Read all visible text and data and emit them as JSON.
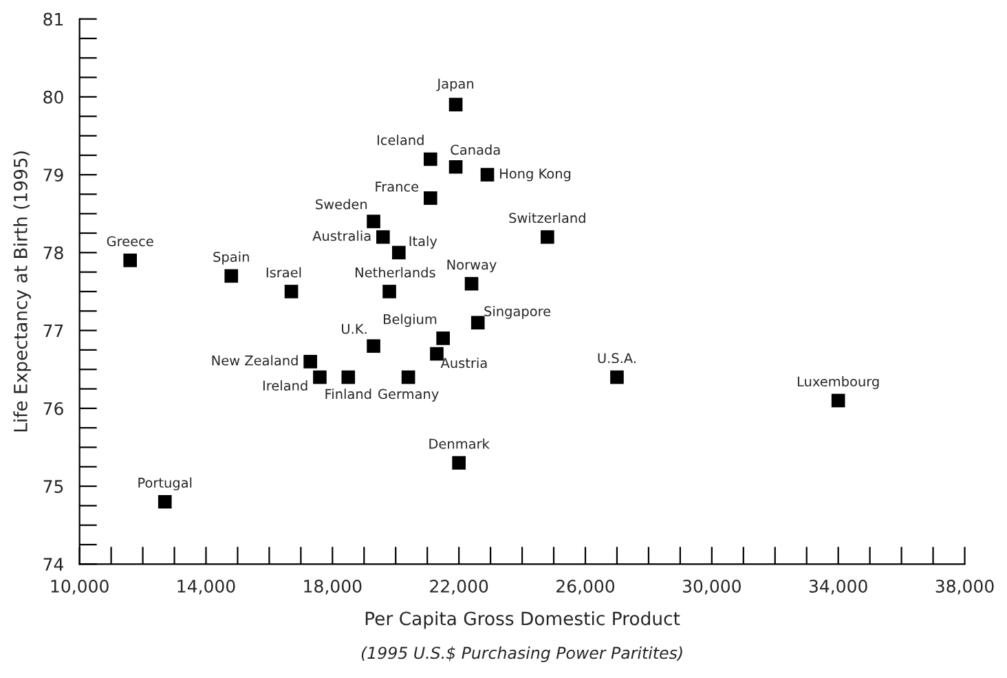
{
  "chart_data": {
    "type": "scatter",
    "xlabel": "Per Capita Gross Domestic Product",
    "ylabel": "Life Expectancy at Birth (1995)",
    "marker": "square",
    "grid": false,
    "x": [
      11600,
      12700,
      14800,
      16700,
      17300,
      17600,
      18500,
      19300,
      19300,
      19600,
      20100,
      19800,
      20400,
      21100,
      21100,
      21900,
      21900,
      22900,
      21500,
      21300,
      22400,
      22600,
      22000,
      24800,
      27000,
      34000
    ],
    "series": [
      {
        "color": "#000000",
        "values": [
          77.9,
          74.8,
          77.7,
          77.5,
          76.6,
          76.4,
          76.4,
          76.8,
          78.4,
          78.2,
          78.0,
          77.5,
          76.4,
          78.7,
          79.2,
          79.9,
          79.1,
          79.0,
          76.9,
          76.7,
          77.6,
          77.1,
          75.3,
          78.2,
          76.4,
          76.1
        ]
      }
    ],
    "annotations": [
      {
        "text": "Greece",
        "x": 11600,
        "y": 77.9
      },
      {
        "text": "Portugal",
        "x": 12700,
        "y": 74.8
      },
      {
        "text": "Spain",
        "x": 14800,
        "y": 77.7
      },
      {
        "text": "Israel",
        "x": 16700,
        "y": 77.5
      },
      {
        "text": "New Zealand",
        "x": 17300,
        "y": 76.6
      },
      {
        "text": "Ireland",
        "x": 17600,
        "y": 76.4
      },
      {
        "text": "Finland",
        "x": 18500,
        "y": 76.4
      },
      {
        "text": "U.K.",
        "x": 19300,
        "y": 76.8
      },
      {
        "text": "Sweden",
        "x": 19300,
        "y": 78.4
      },
      {
        "text": "Australia",
        "x": 19600,
        "y": 78.2
      },
      {
        "text": "Italy",
        "x": 20100,
        "y": 78.0
      },
      {
        "text": "Netherlands",
        "x": 19800,
        "y": 77.5
      },
      {
        "text": "Germany",
        "x": 20400,
        "y": 76.4
      },
      {
        "text": "France",
        "x": 21100,
        "y": 78.7
      },
      {
        "text": "Iceland",
        "x": 21100,
        "y": 79.2
      },
      {
        "text": "Japan",
        "x": 21900,
        "y": 79.9
      },
      {
        "text": "Canada",
        "x": 21900,
        "y": 79.1
      },
      {
        "text": "Hong Kong",
        "x": 22900,
        "y": 79.0
      },
      {
        "text": "Belgium",
        "x": 21500,
        "y": 76.9
      },
      {
        "text": "Austria",
        "x": 21300,
        "y": 76.7
      },
      {
        "text": "Norway",
        "x": 22400,
        "y": 77.6
      },
      {
        "text": "Singapore",
        "x": 22600,
        "y": 77.1
      },
      {
        "text": "Denmark",
        "x": 22000,
        "y": 75.3
      },
      {
        "text": "Switzerland",
        "x": 24800,
        "y": 78.2
      },
      {
        "text": "U.S.A.",
        "x": 27000,
        "y": 76.4
      },
      {
        "text": "Luxembourg",
        "x": 34000,
        "y": 76.1
      },
      "(1995 U.S.$ Purchasing Power Paritites)"
    ],
    "xlim": [
      10000,
      38000
    ],
    "ylim": [
      74,
      81
    ],
    "xticks": [
      {
        "value": 10000,
        "label": "10,000"
      },
      {
        "value": 11000,
        "label": null
      },
      {
        "value": 12000,
        "label": null
      },
      {
        "value": 13000,
        "label": null
      },
      {
        "value": 14000,
        "label": "14,000"
      },
      {
        "value": 15000,
        "label": null
      },
      {
        "value": 16000,
        "label": null
      },
      {
        "value": 17000,
        "label": null
      },
      {
        "value": 18000,
        "label": "18,000"
      },
      {
        "value": 19000,
        "label": null
      },
      {
        "value": 20000,
        "label": null
      },
      {
        "value": 21000,
        "label": null
      },
      {
        "value": 22000,
        "label": "22,000"
      },
      {
        "value": 23000,
        "label": null
      },
      {
        "value": 24000,
        "label": null
      },
      {
        "value": 25000,
        "label": null
      },
      {
        "value": 26000,
        "label": "26,000"
      },
      {
        "value": 27000,
        "label": null
      },
      {
        "value": 28000,
        "label": null
      },
      {
        "value": 29000,
        "label": null
      },
      {
        "value": 30000,
        "label": "30,000"
      },
      {
        "value": 31000,
        "label": null
      },
      {
        "value": 32000,
        "label": null
      },
      {
        "value": 33000,
        "label": null
      },
      {
        "value": 34000,
        "label": "34,000"
      },
      {
        "value": 35000,
        "label": null
      },
      {
        "value": 36000,
        "label": null
      },
      {
        "value": 37000,
        "label": null
      },
      {
        "value": 38000,
        "label": "38,000"
      }
    ],
    "yticks": [
      74,
      {
        "value": 74.25,
        "label": null
      },
      {
        "value": 74.5,
        "label": null
      },
      {
        "value": 74.75,
        "label": null
      },
      75,
      {
        "value": 75.25,
        "label": null
      },
      {
        "value": 75.5,
        "label": null
      },
      {
        "value": 75.75,
        "label": null
      },
      76,
      {
        "value": 76.25,
        "label": null
      },
      {
        "value": 76.5,
        "label": null
      },
      {
        "value": 76.75,
        "label": null
      },
      77,
      {
        "value": 77.25,
        "label": null
      },
      {
        "value": 77.5,
        "label": null
      },
      {
        "value": 77.75,
        "label": null
      },
      78,
      {
        "value": 78.25,
        "label": null
      },
      {
        "value": 78.5,
        "label": null
      },
      {
        "value": 78.75,
        "label": null
      },
      79,
      {
        "value": 79.25,
        "label": null
      },
      {
        "value": 79.5,
        "label": null
      },
      {
        "value": 79.75,
        "label": null
      },
      80,
      {
        "value": 80.25,
        "label": null
      },
      {
        "value": 80.5,
        "label": null
      },
      {
        "value": 80.75,
        "label": null
      },
      81
    ]
  }
}
